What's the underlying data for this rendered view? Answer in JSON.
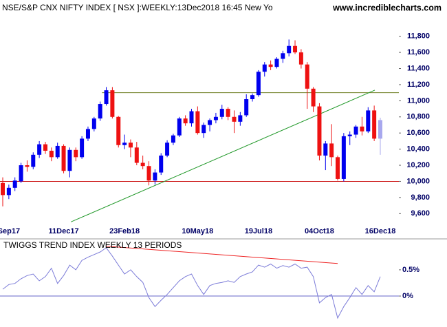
{
  "chart_data": [
    {
      "type": "candlestick",
      "title": "NSE/S&P CNX NIFTY INDEX [ NSX ]:WEEKLY:13Dec2018 16:45 New Yo",
      "watermark": "www.incrediblecharts.com",
      "categories": [
        null,
        "Sep17",
        null,
        null,
        null,
        null,
        null,
        null,
        null,
        null,
        "11Dec17",
        null,
        null,
        null,
        null,
        null,
        null,
        null,
        null,
        null,
        "23Feb18",
        null,
        null,
        null,
        null,
        null,
        null,
        null,
        null,
        null,
        null,
        null,
        "10May18",
        null,
        null,
        null,
        null,
        null,
        null,
        null,
        null,
        null,
        "19Jul18",
        null,
        null,
        null,
        null,
        null,
        null,
        null,
        null,
        null,
        "04Oct18",
        null,
        null,
        null,
        null,
        null,
        null,
        null,
        null,
        null,
        "16Dec18"
      ],
      "open": [
        9980,
        9830,
        9920,
        10000,
        10200,
        10180,
        10330,
        10460,
        10380,
        10300,
        10440,
        10130,
        10390,
        10300,
        10530,
        10650,
        10780,
        10960,
        11130,
        10800,
        10450,
        10480,
        10420,
        10230,
        10190,
        10010,
        10110,
        10320,
        10480,
        10570,
        10780,
        10720,
        10870,
        10600,
        10700,
        10760,
        10800,
        10900,
        10800,
        10740,
        10820,
        11020,
        11070,
        11360,
        11450,
        11420,
        11520,
        11590,
        11680,
        11600,
        11450,
        11150,
        10930,
        10320,
        10470,
        10300,
        10030,
        10560,
        10580,
        10680,
        10620,
        10880,
        10530
      ],
      "high": [
        10050,
        9960,
        10050,
        10230,
        10260,
        10360,
        10500,
        10490,
        10420,
        10480,
        10460,
        10420,
        10420,
        10560,
        10680,
        10800,
        10990,
        11170,
        11170,
        10810,
        10580,
        10520,
        10490,
        10320,
        10250,
        10150,
        10350,
        10510,
        10590,
        10800,
        10820,
        10900,
        10930,
        10730,
        10780,
        10850,
        10950,
        10920,
        10880,
        10860,
        11080,
        11090,
        11380,
        11480,
        11500,
        11540,
        11620,
        11760,
        11750,
        11640,
        11480,
        11170,
        10970,
        10500,
        10710,
        10320,
        10600,
        10620,
        10700,
        10800,
        10920,
        10940,
        10790
      ],
      "low": [
        9690,
        9780,
        9880,
        9980,
        10120,
        10150,
        10290,
        10340,
        10250,
        10280,
        10100,
        10050,
        10250,
        10280,
        10500,
        10620,
        10750,
        10940,
        10780,
        10420,
        10400,
        10300,
        10200,
        10150,
        9950,
        9960,
        10080,
        10300,
        10450,
        10550,
        10690,
        10680,
        10580,
        10540,
        10620,
        10720,
        10770,
        10760,
        10600,
        10690,
        10800,
        10990,
        11050,
        11300,
        11380,
        11400,
        11470,
        11550,
        11580,
        11400,
        10900,
        10860,
        10260,
        10140,
        10190,
        10010,
        10000,
        10450,
        10540,
        10570,
        10600,
        10500,
        10330
      ],
      "close": [
        9830,
        9920,
        10010,
        10200,
        10180,
        10330,
        10460,
        10380,
        10300,
        10440,
        10130,
        10390,
        10300,
        10530,
        10650,
        10780,
        10960,
        11130,
        10800,
        10450,
        10480,
        10420,
        10230,
        10190,
        10010,
        10110,
        10320,
        10480,
        10570,
        10780,
        10720,
        10870,
        10600,
        10700,
        10760,
        10800,
        10900,
        10800,
        10740,
        10820,
        11020,
        11070,
        11360,
        11450,
        11420,
        11520,
        11590,
        11680,
        11600,
        11450,
        11150,
        10930,
        10320,
        10470,
        10300,
        10030,
        10560,
        10580,
        10680,
        10620,
        10880,
        10530,
        10760
      ],
      "up_color": "#0000ee",
      "down_color": "#ee1111",
      "last_color": "#a8a8ee",
      "ylim": [
        9500,
        12250
      ],
      "yticks": [
        {
          "value": 9600,
          "label": "9,600"
        },
        {
          "value": 9800,
          "label": "9,800"
        },
        {
          "value": 10000,
          "label": "10,000"
        },
        {
          "value": 10200,
          "label": "10,200"
        },
        {
          "value": 10400,
          "label": "10,400"
        },
        {
          "value": 10600,
          "label": "10,600"
        },
        {
          "value": 10800,
          "label": "10,800"
        },
        {
          "value": 11000,
          "label": "11,000"
        },
        {
          "value": 11200,
          "label": "11,200"
        },
        {
          "value": 11400,
          "label": "11,400"
        },
        {
          "value": 11600,
          "label": "11,600"
        },
        {
          "value": 11800,
          "label": "11,800"
        }
      ],
      "lines": [
        {
          "y": 10000,
          "color": "#cc1111"
        },
        {
          "y": 11100,
          "x_start": 16.3,
          "color": "#6b7d1e"
        },
        {
          "from": [
            11.2,
            9497
          ],
          "to": [
            61.1,
            11132
          ],
          "color": "#22992a"
        }
      ]
    },
    {
      "type": "line",
      "title": "TWIGGS TREND INDEX WEEKLY 13 PERIODS",
      "values": [
        0.13,
        0.22,
        0.24,
        0.33,
        0.39,
        0.42,
        0.29,
        0.37,
        0.53,
        0.24,
        0.39,
        0.59,
        0.5,
        0.68,
        0.74,
        0.79,
        0.84,
        0.92,
        0.76,
        0.59,
        0.42,
        0.5,
        0.37,
        0.26,
        -0.03,
        -0.2,
        -0.08,
        0.03,
        0.16,
        0.29,
        0.37,
        0.42,
        0.2,
        0.03,
        0.2,
        0.24,
        0.26,
        0.29,
        0.26,
        0.37,
        0.42,
        0.46,
        0.59,
        0.55,
        0.61,
        0.53,
        0.58,
        0.55,
        0.61,
        0.53,
        0.55,
        0.37,
        -0.13,
        -0.03,
        0.03,
        -0.42,
        -0.2,
        -0.03,
        0.16,
        0.03,
        0.2,
        0.08,
        0.37
      ],
      "color": "#7b7bd8",
      "ylim": [
        -0.59,
        1.05
      ],
      "yticks": [
        {
          "value": 0,
          "label": "0%"
        },
        {
          "value": 0.5,
          "label": "0.5%"
        }
      ],
      "lines": [
        {
          "y": 0,
          "color": "#6464c8"
        },
        {
          "from": [
            17,
            0.95
          ],
          "to": [
            55,
            0.62
          ],
          "color": "#ee2222"
        }
      ]
    }
  ]
}
